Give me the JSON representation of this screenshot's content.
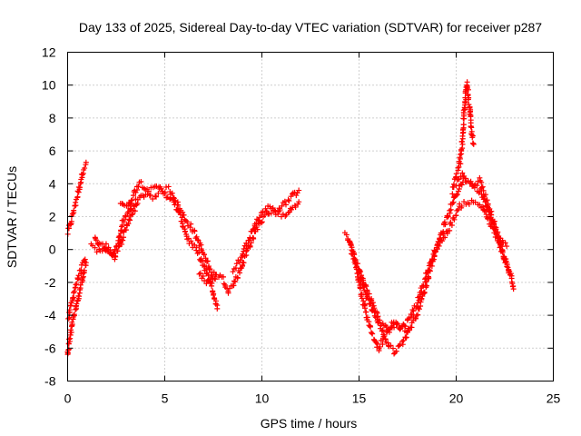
{
  "chart_data": {
    "type": "scatter",
    "title": "Day 133 of 2025, Sidereal Day-to-day VTEC variation (SDTVAR) for receiver p287",
    "xlabel": "GPS time / hours",
    "ylabel": "SDTVAR / TECUs",
    "xlim": [
      0,
      25
    ],
    "ylim": [
      -8,
      12
    ],
    "xticks": [
      "0",
      "5",
      "10",
      "15",
      "20",
      "25"
    ],
    "yticks": [
      "-8",
      "-6",
      "-4",
      "-2",
      "0",
      "2",
      "4",
      "6",
      "8",
      "10",
      "12"
    ],
    "grid": true,
    "marker": "+",
    "series": [
      {
        "name": "SDTVAR",
        "color": "#ff0000",
        "segments": [
          [
            [
              0.0,
              1.0
            ],
            [
              0.2,
              1.8
            ],
            [
              0.4,
              2.8
            ],
            [
              0.6,
              3.8
            ],
            [
              0.8,
              4.8
            ],
            [
              0.95,
              5.3
            ]
          ],
          [
            [
              0.0,
              -6.5
            ],
            [
              0.1,
              -5.5
            ],
            [
              0.2,
              -4.8
            ],
            [
              0.35,
              -4.0
            ],
            [
              0.5,
              -3.2
            ],
            [
              0.65,
              -2.4
            ],
            [
              0.8,
              -1.6
            ],
            [
              0.95,
              -0.8
            ]
          ],
          [
            [
              0.05,
              -4.2
            ],
            [
              0.25,
              -3.0
            ],
            [
              0.45,
              -2.0
            ],
            [
              0.7,
              -1.2
            ],
            [
              0.9,
              -0.6
            ]
          ],
          [
            [
              1.2,
              0.2
            ],
            [
              1.5,
              0.0
            ],
            [
              1.8,
              -0.2
            ],
            [
              2.0,
              0.2
            ],
            [
              2.3,
              -0.3
            ],
            [
              2.6,
              0.4
            ],
            [
              2.8,
              1.5
            ],
            [
              3.0,
              2.0
            ],
            [
              3.3,
              2.6
            ],
            [
              3.6,
              3.0
            ],
            [
              4.0,
              3.4
            ],
            [
              4.4,
              3.2
            ],
            [
              4.8,
              3.6
            ],
            [
              5.2,
              3.7
            ],
            [
              5.5,
              3.2
            ],
            [
              5.8,
              2.4
            ],
            [
              6.1,
              1.8
            ],
            [
              6.4,
              1.3
            ],
            [
              6.7,
              0.6
            ],
            [
              7.0,
              -0.3
            ],
            [
              7.3,
              -1.2
            ],
            [
              7.6,
              -1.8
            ]
          ],
          [
            [
              2.7,
              2.9
            ],
            [
              3.1,
              2.6
            ],
            [
              3.4,
              3.4
            ],
            [
              3.7,
              4.1
            ],
            [
              4.0,
              3.8
            ],
            [
              4.3,
              3.6
            ],
            [
              4.7,
              3.8
            ],
            [
              5.0,
              3.4
            ],
            [
              5.4,
              3.0
            ],
            [
              5.8,
              2.0
            ],
            [
              6.2,
              0.6
            ],
            [
              6.6,
              0.0
            ],
            [
              7.0,
              -1.0
            ],
            [
              7.4,
              -2.2
            ],
            [
              7.7,
              -3.6
            ]
          ],
          [
            [
              1.4,
              0.8
            ],
            [
              1.6,
              0.3
            ],
            [
              2.1,
              0.0
            ],
            [
              2.4,
              -0.5
            ],
            [
              2.8,
              0.6
            ],
            [
              3.2,
              1.9
            ],
            [
              3.6,
              2.8
            ]
          ],
          [
            [
              6.8,
              -1.5
            ],
            [
              7.2,
              -2.0
            ],
            [
              7.6,
              -1.4
            ],
            [
              8.0,
              -1.8
            ],
            [
              8.3,
              -2.5
            ],
            [
              8.6,
              -2.0
            ],
            [
              8.9,
              -1.2
            ],
            [
              9.2,
              -0.2
            ],
            [
              9.5,
              0.6
            ],
            [
              9.8,
              1.5
            ],
            [
              10.1,
              1.9
            ],
            [
              10.4,
              2.3
            ],
            [
              10.8,
              2.4
            ],
            [
              11.2,
              2.8
            ],
            [
              11.6,
              3.3
            ],
            [
              11.9,
              3.6
            ]
          ],
          [
            [
              8.5,
              -1.2
            ],
            [
              8.9,
              -0.6
            ],
            [
              9.3,
              0.5
            ],
            [
              9.7,
              1.6
            ],
            [
              10.0,
              2.2
            ],
            [
              10.4,
              2.6
            ],
            [
              10.8,
              2.2
            ],
            [
              11.2,
              2.0
            ],
            [
              11.6,
              2.6
            ],
            [
              11.9,
              2.9
            ]
          ],
          [
            [
              14.3,
              0.9
            ],
            [
              14.6,
              0.2
            ],
            [
              14.9,
              -0.9
            ],
            [
              15.1,
              -1.8
            ],
            [
              15.3,
              -2.6
            ],
            [
              15.6,
              -3.4
            ],
            [
              15.9,
              -4.2
            ],
            [
              16.2,
              -5.0
            ],
            [
              16.5,
              -5.8
            ],
            [
              16.8,
              -6.2
            ],
            [
              17.1,
              -5.9
            ],
            [
              17.4,
              -5.3
            ],
            [
              17.7,
              -4.6
            ],
            [
              18.0,
              -3.8
            ],
            [
              18.3,
              -2.8
            ],
            [
              18.6,
              -1.5
            ],
            [
              18.9,
              -0.2
            ],
            [
              19.2,
              0.9
            ],
            [
              19.5,
              1.8
            ],
            [
              19.8,
              2.8
            ],
            [
              20.1,
              3.6
            ],
            [
              20.4,
              4.3
            ],
            [
              20.7,
              4.1
            ],
            [
              21.0,
              3.8
            ],
            [
              21.3,
              3.4
            ],
            [
              21.6,
              2.6
            ],
            [
              21.9,
              1.6
            ],
            [
              22.2,
              0.4
            ],
            [
              22.5,
              -0.6
            ],
            [
              22.8,
              -1.6
            ],
            [
              22.95,
              -2.4
            ]
          ],
          [
            [
              14.5,
              0.5
            ],
            [
              14.8,
              -0.8
            ],
            [
              15.1,
              -2.6
            ],
            [
              15.4,
              -4.0
            ],
            [
              15.7,
              -5.2
            ],
            [
              16.0,
              -6.0
            ],
            [
              16.4,
              -5.2
            ],
            [
              16.8,
              -4.4
            ],
            [
              17.2,
              -4.8
            ],
            [
              17.6,
              -4.2
            ],
            [
              18.0,
              -3.2
            ],
            [
              18.4,
              -1.8
            ],
            [
              18.8,
              -0.4
            ],
            [
              19.2,
              0.5
            ],
            [
              19.6,
              1.2
            ],
            [
              20.0,
              2.2
            ],
            [
              20.3,
              2.8
            ],
            [
              20.6,
              2.9
            ],
            [
              21.0,
              2.8
            ],
            [
              21.4,
              2.6
            ],
            [
              21.8,
              1.4
            ],
            [
              22.2,
              0.6
            ],
            [
              22.6,
              0.2
            ]
          ],
          [
            [
              15.0,
              -1.2
            ],
            [
              15.5,
              -2.8
            ],
            [
              16.0,
              -4.2
            ],
            [
              16.5,
              -4.8
            ],
            [
              17.0,
              -4.6
            ],
            [
              17.5,
              -5.0
            ]
          ],
          [
            [
              19.8,
              3.5
            ],
            [
              20.0,
              4.5
            ],
            [
              20.15,
              5.0
            ],
            [
              20.3,
              6.2
            ],
            [
              20.4,
              8.2
            ],
            [
              20.5,
              9.6
            ],
            [
              20.55,
              10.2
            ],
            [
              20.6,
              9.6
            ],
            [
              20.7,
              8.4
            ],
            [
              20.8,
              7.2
            ],
            [
              20.9,
              6.4
            ]
          ],
          [
            [
              20.0,
              4.0
            ],
            [
              20.3,
              4.5
            ],
            [
              20.6,
              4.0
            ],
            [
              20.9,
              3.8
            ],
            [
              21.2,
              4.2
            ],
            [
              21.5,
              3.2
            ],
            [
              21.9,
              1.8
            ],
            [
              22.3,
              0.2
            ],
            [
              22.7,
              -1.3
            ]
          ]
        ]
      }
    ]
  }
}
